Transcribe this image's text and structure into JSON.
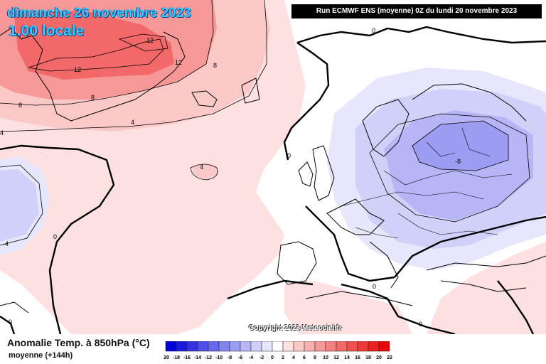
{
  "header": {
    "date": "dimanche 26 novembre 2023",
    "time": "1.00 locale",
    "run": "Run ECMWF ENS (moyenne) 0Z du lundi 20 novembre 2023"
  },
  "legend": {
    "title": "Anomalie Temp. à 850hPa (°C)",
    "subtitle": "moyenne  (+144h)",
    "ticks": [
      "-20",
      "-18",
      "-16",
      "-14",
      "-12",
      "-10",
      "-8",
      "-6",
      "-4",
      "-2",
      "0",
      "2",
      "4",
      "6",
      "8",
      "10",
      "12",
      "14",
      "16",
      "18",
      "20",
      "22"
    ],
    "colors": [
      "#0000dd",
      "#1a1ae0",
      "#3434e4",
      "#4e4ee8",
      "#6868ec",
      "#8282f0",
      "#9c9cf3",
      "#b6b6f6",
      "#d0d0f9",
      "#e6e6fc",
      "#ffffff",
      "#fde0e0",
      "#fbc8c8",
      "#f9b0b0",
      "#f79898",
      "#f58080",
      "#f36868",
      "#f15050",
      "#ef3838",
      "#ed2020",
      "#e80808"
    ]
  },
  "contour_labels": [
    "12",
    "12",
    "12",
    "8",
    "8",
    "8",
    "4",
    "4",
    "4",
    "0",
    "0",
    "0",
    "0",
    "0",
    "0",
    "-4",
    "-8"
  ],
  "copyright": "Copyright 2023 Meteociel.fr",
  "colors": {
    "warm_strong": "#f36868",
    "warm_mid": "#f79898",
    "warm_light": "#fbc8c8",
    "warm_pale": "#fde0e0",
    "cold_pale": "#e6e6fc",
    "cold_light": "#d0d0f9",
    "cold_mid": "#b6b6f6",
    "cold_strong": "#9c9cf3"
  }
}
